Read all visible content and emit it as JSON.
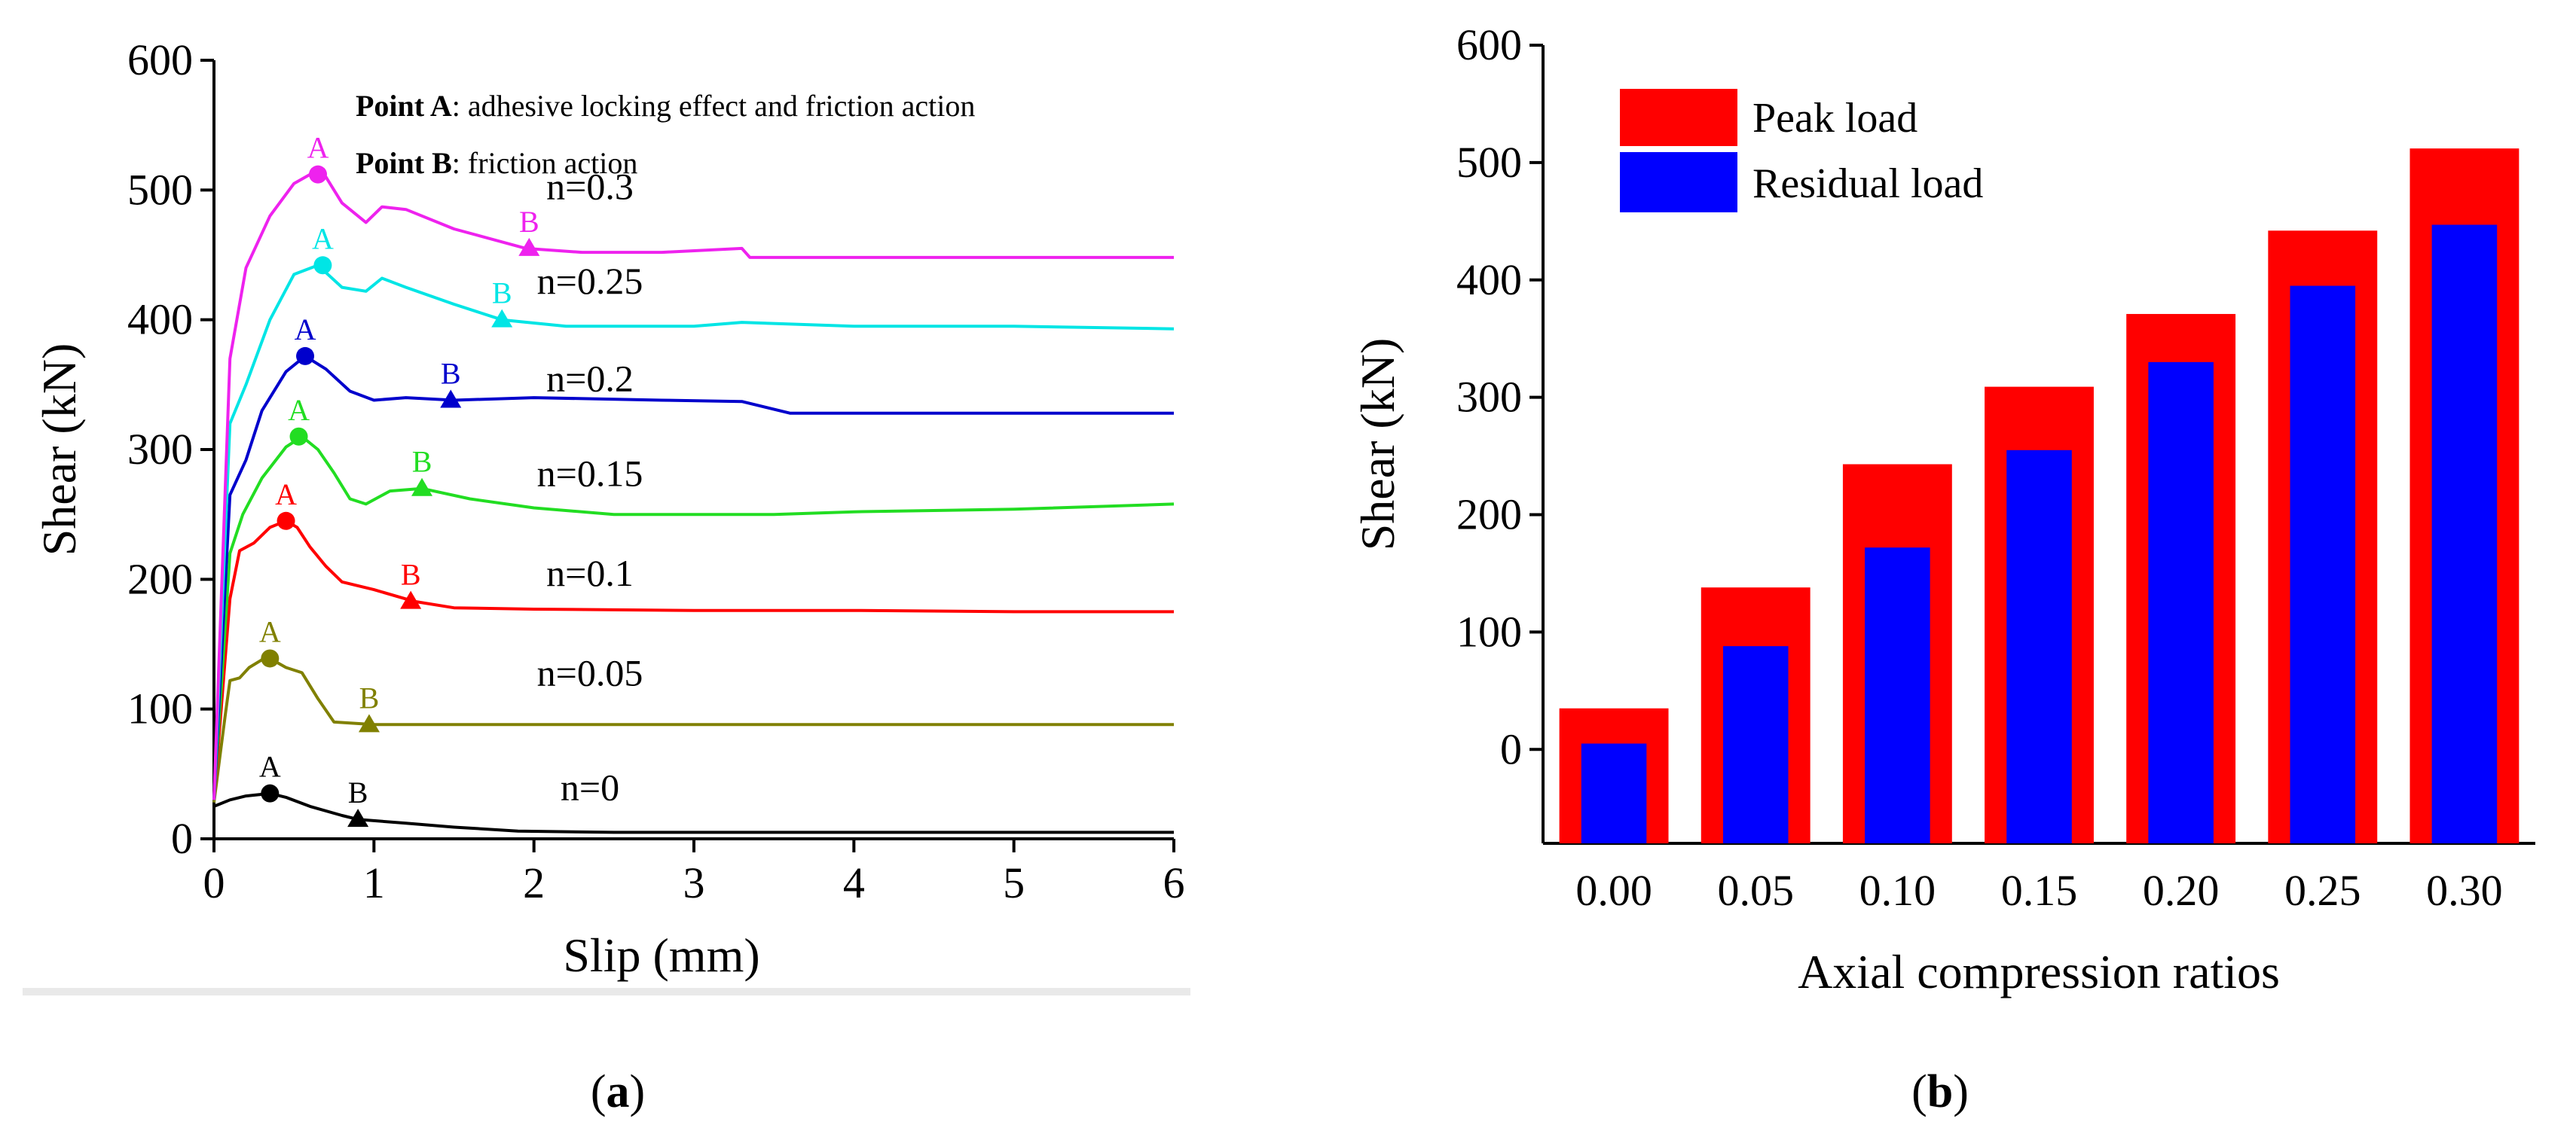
{
  "chart_data": [
    {
      "type": "line",
      "caption_label": "a",
      "xlabel": "Slip (mm)",
      "ylabel": "Shear (kN)",
      "xlim": [
        0,
        6
      ],
      "ylim": [
        0,
        600
      ],
      "xticks": [
        "0",
        "1",
        "2",
        "3",
        "4",
        "5",
        "6"
      ],
      "yticks": [
        "0",
        "100",
        "200",
        "300",
        "400",
        "500",
        "600"
      ],
      "legend_notes": [
        {
          "bold": "Point A",
          "text": ": adhesive locking effect and friction action"
        },
        {
          "bold": "Point B",
          "text": ": friction action"
        }
      ],
      "point_labels": {
        "a": "A",
        "b": "B"
      },
      "series": [
        {
          "name": "n=0",
          "color": "#000000",
          "label_x": 2.35,
          "label_y": 30,
          "points": [
            [
              0,
              25
            ],
            [
              0.1,
              30
            ],
            [
              0.2,
              33
            ],
            [
              0.35,
              35
            ],
            [
              0.45,
              32
            ],
            [
              0.6,
              25
            ],
            [
              0.8,
              18
            ],
            [
              0.9,
              15
            ],
            [
              1.2,
              12
            ],
            [
              1.5,
              9
            ],
            [
              1.9,
              6
            ],
            [
              2.5,
              5
            ],
            [
              3,
              5
            ],
            [
              4,
              5
            ],
            [
              5,
              5
            ],
            [
              6,
              5
            ]
          ],
          "peak": [
            0.35,
            35
          ],
          "residual": [
            0.9,
            15
          ]
        },
        {
          "name": "n=0.05",
          "color": "#808000",
          "label_x": 2.35,
          "label_y": 118,
          "points": [
            [
              0,
              28
            ],
            [
              0.07,
              95
            ],
            [
              0.1,
              122
            ],
            [
              0.16,
              124
            ],
            [
              0.22,
              132
            ],
            [
              0.3,
              138
            ],
            [
              0.35,
              139
            ],
            [
              0.45,
              132
            ],
            [
              0.55,
              128
            ],
            [
              0.65,
              108
            ],
            [
              0.75,
              90
            ],
            [
              1.0,
              88
            ],
            [
              2,
              88
            ],
            [
              3,
              88
            ],
            [
              4,
              88
            ],
            [
              5,
              88
            ],
            [
              6,
              88
            ]
          ],
          "peak": [
            0.35,
            139
          ],
          "residual": [
            0.97,
            88
          ]
        },
        {
          "name": "n=0.1",
          "color": "#ff0000",
          "label_x": 2.35,
          "label_y": 195,
          "points": [
            [
              0,
              30
            ],
            [
              0.1,
              185
            ],
            [
              0.16,
              222
            ],
            [
              0.25,
              228
            ],
            [
              0.35,
              240
            ],
            [
              0.45,
              245
            ],
            [
              0.52,
              240
            ],
            [
              0.6,
              225
            ],
            [
              0.7,
              210
            ],
            [
              0.8,
              198
            ],
            [
              1.0,
              192
            ],
            [
              1.25,
              183
            ],
            [
              1.5,
              178
            ],
            [
              2,
              177
            ],
            [
              3,
              176
            ],
            [
              4,
              176
            ],
            [
              5,
              175
            ],
            [
              6,
              175
            ]
          ],
          "peak": [
            0.45,
            245
          ],
          "residual": [
            1.23,
            183
          ]
        },
        {
          "name": "n=0.15",
          "color": "#22dd22",
          "label_x": 2.35,
          "label_y": 272,
          "points": [
            [
              0,
              30
            ],
            [
              0.1,
              220
            ],
            [
              0.18,
              250
            ],
            [
              0.3,
              278
            ],
            [
              0.45,
              302
            ],
            [
              0.55,
              310
            ],
            [
              0.65,
              300
            ],
            [
              0.75,
              282
            ],
            [
              0.85,
              262
            ],
            [
              0.95,
              258
            ],
            [
              1.1,
              268
            ],
            [
              1.3,
              270
            ],
            [
              1.6,
              262
            ],
            [
              2,
              255
            ],
            [
              2.5,
              250
            ],
            [
              3,
              250
            ],
            [
              3.5,
              250
            ],
            [
              4,
              252
            ],
            [
              5,
              254
            ],
            [
              6,
              258
            ]
          ],
          "peak": [
            0.53,
            310
          ],
          "residual": [
            1.3,
            270
          ]
        },
        {
          "name": "n=0.2",
          "color": "#0000cc",
          "label_x": 2.35,
          "label_y": 345,
          "points": [
            [
              0,
              30
            ],
            [
              0.1,
              265
            ],
            [
              0.2,
              292
            ],
            [
              0.3,
              330
            ],
            [
              0.45,
              360
            ],
            [
              0.57,
              372
            ],
            [
              0.7,
              362
            ],
            [
              0.85,
              345
            ],
            [
              1.0,
              338
            ],
            [
              1.2,
              340
            ],
            [
              1.5,
              338
            ],
            [
              2,
              340
            ],
            [
              2.8,
              338
            ],
            [
              3.3,
              337
            ],
            [
              3.6,
              328
            ],
            [
              4,
              328
            ],
            [
              5,
              328
            ],
            [
              6,
              328
            ]
          ],
          "peak": [
            0.57,
            372
          ],
          "residual": [
            1.48,
            338
          ]
        },
        {
          "name": "n=0.25",
          "color": "#00e5e5",
          "label_x": 2.35,
          "label_y": 420,
          "points": [
            [
              0,
              30
            ],
            [
              0.1,
              320
            ],
            [
              0.2,
              350
            ],
            [
              0.35,
              400
            ],
            [
              0.5,
              435
            ],
            [
              0.65,
              442
            ],
            [
              0.8,
              425
            ],
            [
              0.95,
              422
            ],
            [
              1.05,
              432
            ],
            [
              1.2,
              425
            ],
            [
              1.5,
              412
            ],
            [
              1.8,
              400
            ],
            [
              2.2,
              395
            ],
            [
              3,
              395
            ],
            [
              3.3,
              398
            ],
            [
              4,
              395
            ],
            [
              5,
              395
            ],
            [
              6,
              393
            ]
          ],
          "peak": [
            0.68,
            442
          ],
          "residual": [
            1.8,
            400
          ]
        },
        {
          "name": "n=0.3",
          "color": "#ee22ee",
          "label_x": 2.35,
          "label_y": 493,
          "points": [
            [
              0,
              30
            ],
            [
              0.1,
              370
            ],
            [
              0.2,
              440
            ],
            [
              0.35,
              480
            ],
            [
              0.5,
              505
            ],
            [
              0.6,
              512
            ],
            [
              0.7,
              510
            ],
            [
              0.8,
              490
            ],
            [
              0.95,
              475
            ],
            [
              1.05,
              487
            ],
            [
              1.2,
              485
            ],
            [
              1.5,
              470
            ],
            [
              1.95,
              455
            ],
            [
              2.3,
              452
            ],
            [
              2.8,
              452
            ],
            [
              3.3,
              455
            ],
            [
              3.35,
              448
            ],
            [
              4,
              448
            ],
            [
              5,
              448
            ],
            [
              6,
              448
            ]
          ],
          "peak": [
            0.65,
            512
          ],
          "residual": [
            1.97,
            455
          ]
        }
      ]
    },
    {
      "type": "bar",
      "caption_label": "b",
      "xlabel": "Axial compression ratios",
      "ylabel": "Shear (kN)",
      "ylim": [
        -80,
        600
      ],
      "yticks": [
        "0",
        "100",
        "200",
        "300",
        "400",
        "500",
        "600"
      ],
      "categories": [
        "0.00",
        "0.05",
        "0.10",
        "0.15",
        "0.20",
        "0.25",
        "0.30"
      ],
      "series": [
        {
          "name": "Peak load",
          "color": "#ff0000",
          "values": [
            35,
            138,
            243,
            309,
            371,
            442,
            512
          ]
        },
        {
          "name": "Residual load",
          "color": "#0000ff",
          "values": [
            5,
            88,
            172,
            255,
            330,
            395,
            447
          ]
        }
      ]
    }
  ]
}
